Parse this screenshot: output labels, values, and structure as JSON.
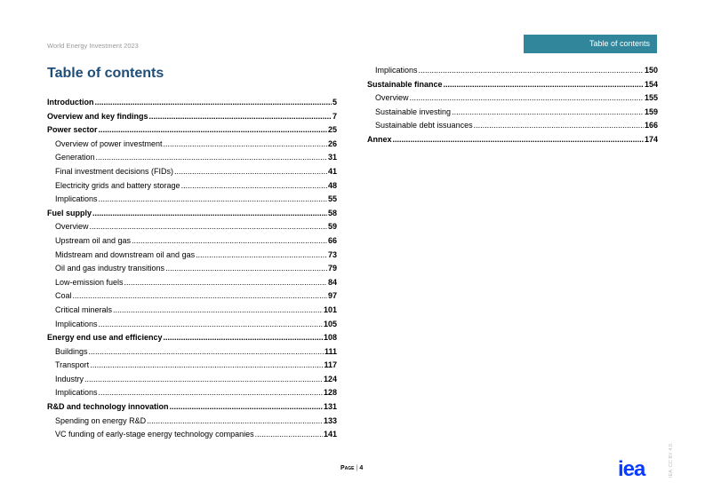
{
  "header": {
    "report_title": "World Energy Investment 2023",
    "section_tab": "Table of contents"
  },
  "title": "Table of contents",
  "left_column": [
    {
      "label": "Introduction",
      "page": "5",
      "level": "main"
    },
    {
      "label": "Overview and key findings",
      "page": "7",
      "level": "main"
    },
    {
      "label": "Power sector",
      "page": "25",
      "level": "main"
    },
    {
      "label": "Overview of power investment",
      "page": "26",
      "level": "sub"
    },
    {
      "label": "Generation",
      "page": "31",
      "level": "sub"
    },
    {
      "label": "Final investment decisions (FIDs)",
      "page": "41",
      "level": "sub"
    },
    {
      "label": "Electricity grids and battery storage",
      "page": "48",
      "level": "sub"
    },
    {
      "label": "Implications",
      "page": "55",
      "level": "sub"
    },
    {
      "label": "Fuel supply",
      "page": "58",
      "level": "main"
    },
    {
      "label": "Overview",
      "page": "59",
      "level": "sub"
    },
    {
      "label": "Upstream oil and gas",
      "page": "66",
      "level": "sub"
    },
    {
      "label": "Midstream and downstream oil and gas",
      "page": "73",
      "level": "sub"
    },
    {
      "label": "Oil and gas industry transitions",
      "page": "79",
      "level": "sub"
    },
    {
      "label": "Low-emission fuels",
      "page": "84",
      "level": "sub"
    },
    {
      "label": "Coal",
      "page": "97",
      "level": "sub"
    },
    {
      "label": "Critical minerals",
      "page": "101",
      "level": "sub"
    },
    {
      "label": "Implications",
      "page": "105",
      "level": "sub"
    },
    {
      "label": "Energy end use and efficiency",
      "page": "108",
      "level": "main"
    },
    {
      "label": "Buildings",
      "page": "111",
      "level": "sub"
    },
    {
      "label": "Transport",
      "page": "117",
      "level": "sub"
    },
    {
      "label": "Industry",
      "page": "124",
      "level": "sub"
    },
    {
      "label": "Implications",
      "page": "128",
      "level": "sub"
    },
    {
      "label": "R&D and technology innovation",
      "page": "131",
      "level": "main"
    },
    {
      "label": "Spending on energy R&D",
      "page": "133",
      "level": "sub"
    },
    {
      "label": "VC funding of early-stage energy technology companies",
      "page": "141",
      "level": "sub"
    }
  ],
  "right_column": [
    {
      "label": "Implications",
      "page": "150",
      "level": "sub"
    },
    {
      "label": "Sustainable finance",
      "page": "154",
      "level": "main"
    },
    {
      "label": "Overview",
      "page": "155",
      "level": "sub"
    },
    {
      "label": "Sustainable investing",
      "page": "159",
      "level": "sub"
    },
    {
      "label": "Sustainable debt issuances",
      "page": "166",
      "level": "sub"
    },
    {
      "label": "Annex",
      "page": "174",
      "level": "main"
    }
  ],
  "footer": {
    "page_label": "Page",
    "separator": "|",
    "page_number": "4",
    "logo": "iea",
    "license": "IEA. CC BY 4.0."
  },
  "colors": {
    "tab_bg": "#31869b",
    "title": "#1f4e79",
    "logo": "#0a3cff"
  }
}
